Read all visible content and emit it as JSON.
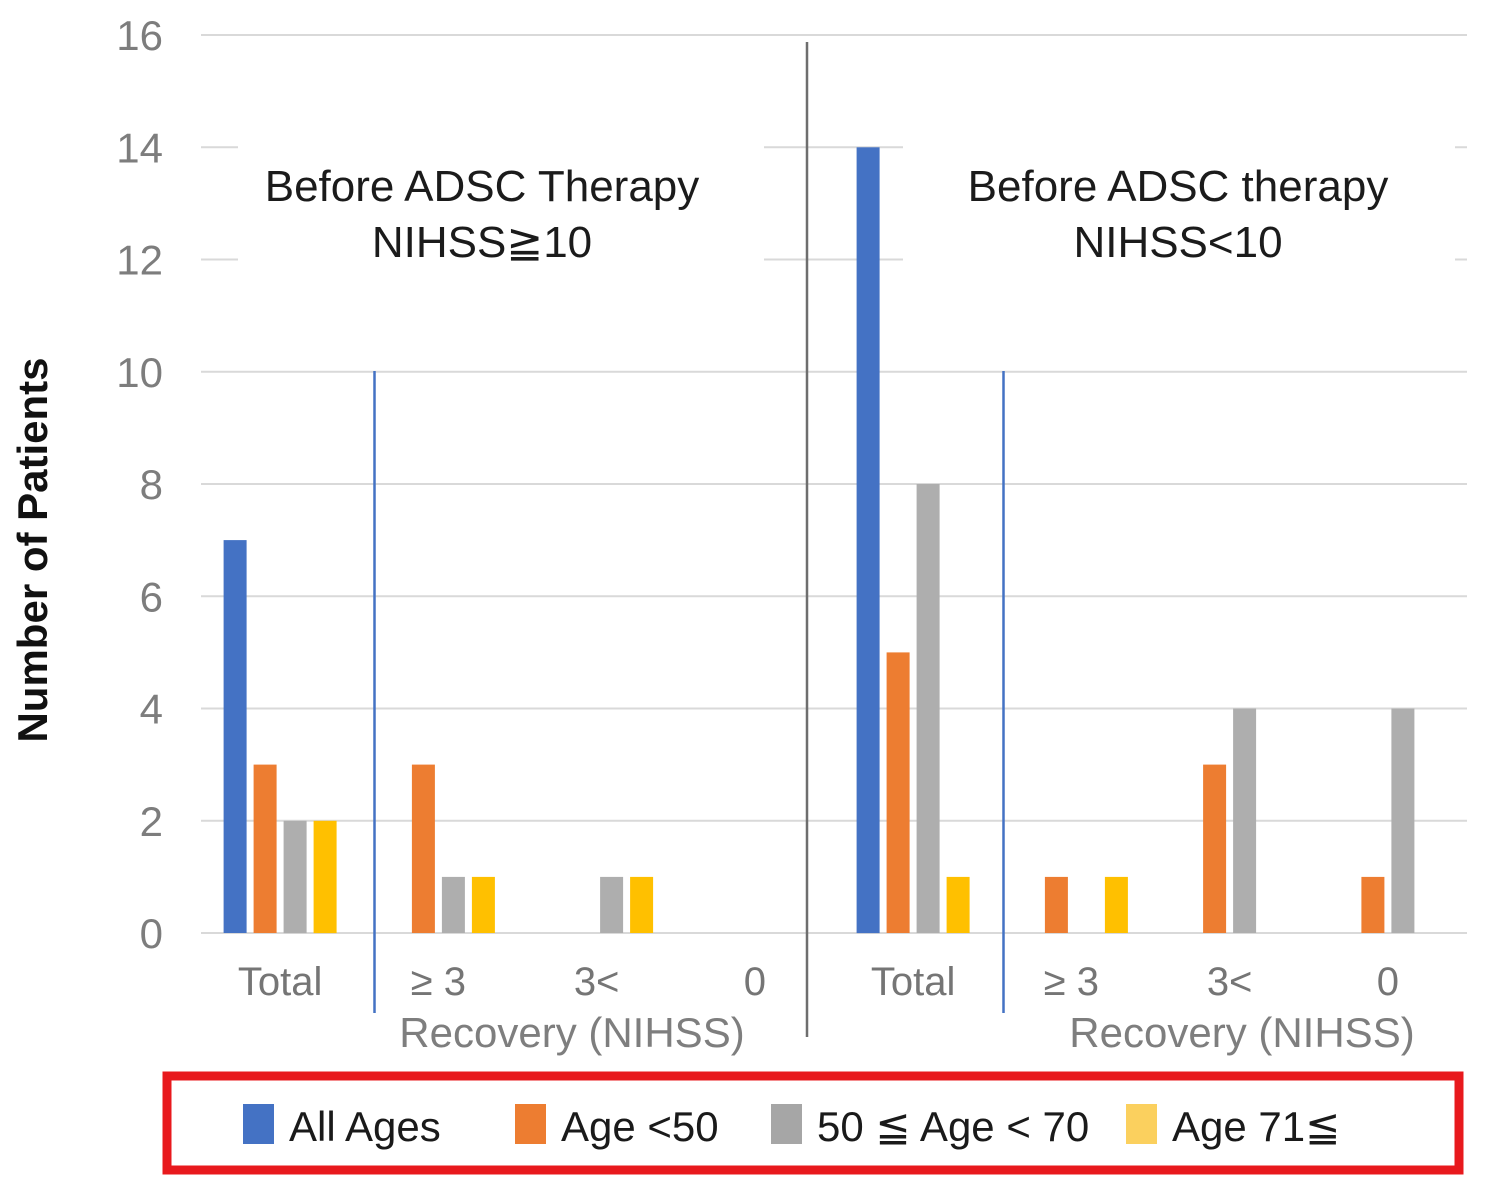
{
  "chart_data": {
    "type": "bar",
    "ylabel": "Number of Patients",
    "ylim": [
      0,
      16
    ],
    "yticks": [
      0,
      2,
      4,
      6,
      8,
      10,
      12,
      14,
      16
    ],
    "grid": "horizontal gridlines every 2 units",
    "legend_position": "bottom, inside red-outlined box",
    "categories": [
      "Total",
      "≥ 3",
      "3<",
      "0"
    ],
    "series_names": [
      "All Ages",
      "Age <50",
      "50 ≦ Age < 70",
      "Age 71≦"
    ],
    "series_colors": [
      "#4472C4",
      "#ED7D31",
      "#AEAEAE",
      "#FFC000"
    ],
    "panels": [
      {
        "title_lines": [
          "Before ADSC Therapy",
          "NIHSS≧10"
        ],
        "xlabel": "Recovery (NIHSS)",
        "categories": [
          "Total",
          "≥ 3",
          "3<",
          "0"
        ],
        "series": [
          {
            "name": "All Ages",
            "values": [
              7,
              0,
              0,
              0
            ]
          },
          {
            "name": "Age <50",
            "values": [
              3,
              3,
              0,
              0
            ]
          },
          {
            "name": "50 ≦ Age < 70",
            "values": [
              2,
              1,
              1,
              0
            ]
          },
          {
            "name": "Age 71≦",
            "values": [
              2,
              1,
              1,
              0
            ]
          }
        ]
      },
      {
        "title_lines": [
          "Before ADSC therapy",
          "NIHSS<10"
        ],
        "xlabel": "Recovery (NIHSS)",
        "categories": [
          "Total",
          "≥ 3",
          "3<",
          "0"
        ],
        "series": [
          {
            "name": "All Ages",
            "values": [
              14,
              0,
              0,
              0
            ]
          },
          {
            "name": "Age <50",
            "values": [
              5,
              1,
              3,
              1
            ]
          },
          {
            "name": "50 ≦ Age < 70",
            "values": [
              8,
              0,
              4,
              4
            ]
          },
          {
            "name": "Age 71≦",
            "values": [
              1,
              1,
              0,
              0
            ]
          }
        ]
      }
    ],
    "legend": {
      "items": [
        {
          "label": "All Ages",
          "swatch_color": "#4472C4"
        },
        {
          "label": "Age <50",
          "swatch_color": "#ED7D31"
        },
        {
          "label": "50 ≦ Age < 70",
          "swatch_color": "#A6A6A6"
        },
        {
          "label": "Age 71≦",
          "swatch_color": "#FBD05E"
        }
      ],
      "border_color": "#E8191D"
    }
  },
  "colors": {
    "background": "#FFFFFF",
    "gridline": "#D9D9D9",
    "tick_label": "#7D7D7D",
    "category_label": "#757575",
    "xlabel_text": "#7E7E7E",
    "axis_title": "#111111",
    "panel_title": "#1B1B1B",
    "legend_text": "#1A1A1A",
    "legend_border": "#E8191D",
    "panel_divider": "#6E6E6E",
    "guide_line": "#4472C4"
  }
}
